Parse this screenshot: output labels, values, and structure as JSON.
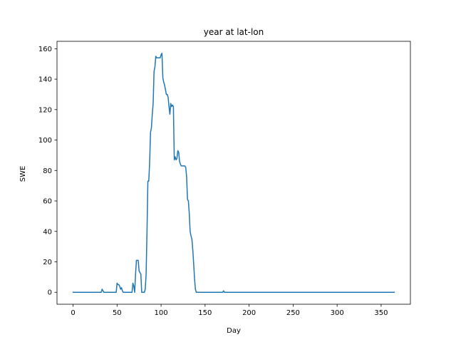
{
  "chart_data": {
    "type": "line",
    "title": "year at lat-lon",
    "xlabel": "Day",
    "ylabel": "SWE",
    "xlim": [
      -18.25,
      383.25
    ],
    "ylim": [
      -7.85,
      164.85
    ],
    "xticks": [
      0,
      50,
      100,
      150,
      200,
      250,
      300,
      350
    ],
    "yticks": [
      0,
      20,
      40,
      60,
      80,
      100,
      120,
      140,
      160
    ],
    "grid": false,
    "line_color": "#1f77b4",
    "series": [
      {
        "x": [
          0,
          32,
          33,
          34,
          35,
          49,
          50,
          51,
          52,
          53,
          54,
          55,
          56,
          57,
          67,
          68,
          69,
          70,
          71,
          72,
          73,
          74,
          75,
          76,
          77,
          78,
          79,
          80,
          81,
          82,
          83,
          84,
          85,
          86,
          87,
          88,
          89,
          90,
          91,
          92,
          93,
          94,
          95,
          96,
          97,
          98,
          99,
          100,
          101,
          102,
          103,
          104,
          105,
          106,
          107,
          108,
          109,
          110,
          111,
          112,
          113,
          114,
          115,
          116,
          117,
          118,
          119,
          120,
          121,
          122,
          123,
          124,
          125,
          126,
          127,
          128,
          129,
          130,
          131,
          132,
          133,
          134,
          135,
          136,
          137,
          138,
          139,
          140,
          141,
          142,
          143,
          144,
          145,
          146,
          170,
          171,
          172,
          365
        ],
        "y": [
          0,
          0,
          2,
          1,
          0,
          0,
          6,
          5,
          5,
          4,
          2,
          3,
          1,
          0,
          0,
          6,
          4,
          0,
          12,
          21,
          21,
          21,
          14,
          13,
          12,
          0,
          0,
          0,
          0,
          2,
          12,
          40,
          73,
          73,
          85,
          105,
          108,
          117,
          124,
          145,
          148,
          155,
          154,
          154,
          154,
          154,
          154,
          156,
          157,
          141,
          138,
          136,
          133,
          130,
          130,
          128,
          122,
          117,
          124,
          122,
          123,
          122,
          87,
          89,
          87,
          88,
          93,
          92,
          86,
          84,
          83,
          83,
          83,
          83,
          83,
          82,
          76,
          61,
          60,
          52,
          40,
          37,
          35,
          28,
          19,
          9,
          2,
          0,
          0,
          0,
          0,
          0,
          0,
          0,
          0,
          1,
          0,
          0
        ]
      }
    ]
  }
}
